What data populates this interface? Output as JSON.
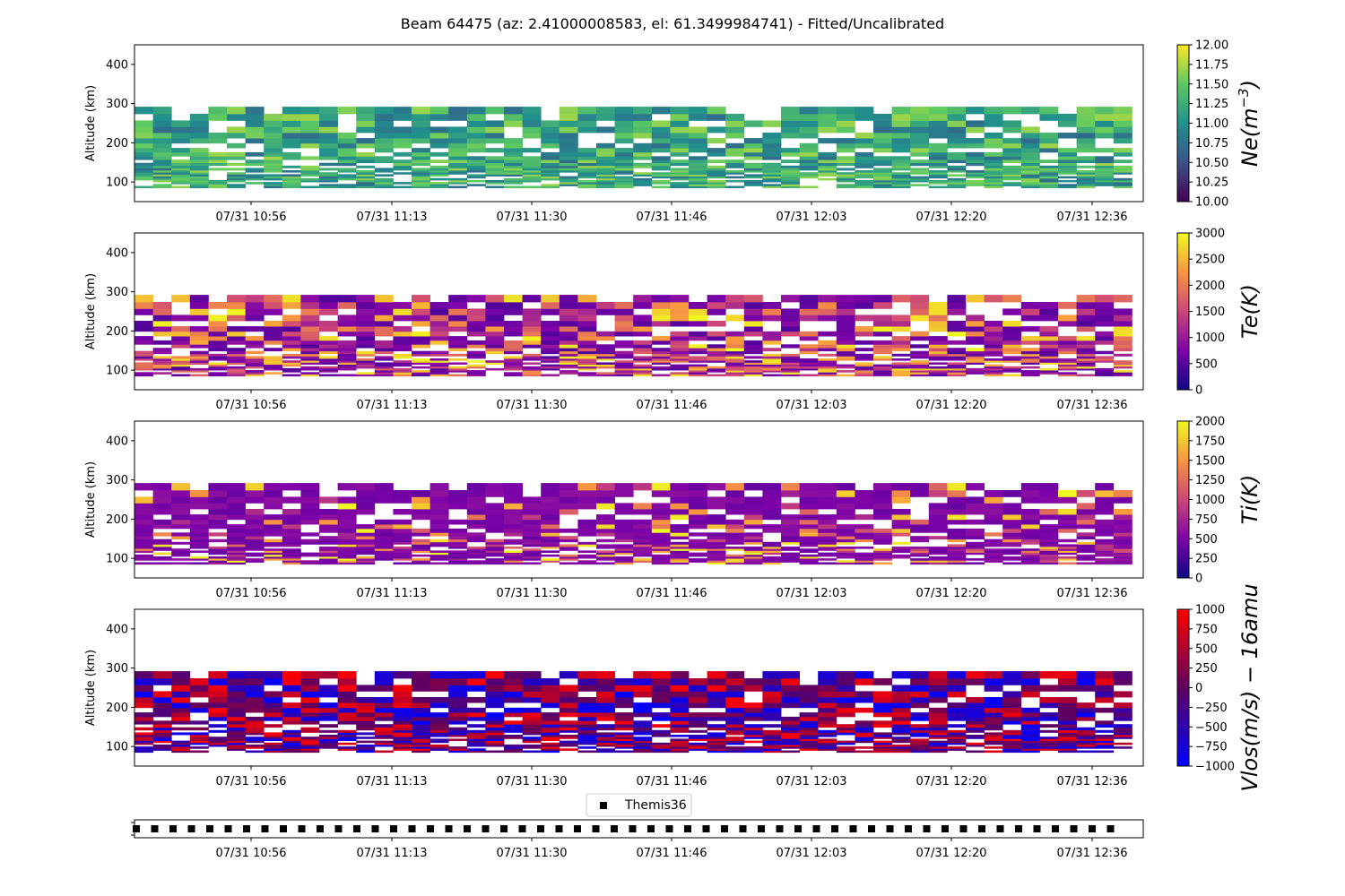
{
  "figure": {
    "title": "Beam 64475 (az: 2.41000008583, el: 61.3499984741) - Fitted/Uncalibrated"
  },
  "time_ticks": [
    "07/31 10:56",
    "07/31 11:13",
    "07/31 11:30",
    "07/31 11:46",
    "07/31 12:03",
    "07/31 12:20",
    "07/31 12:36"
  ],
  "chart_data": [
    {
      "type": "heatmap",
      "parameter": "Ne",
      "ylabel": "Altitude (km)",
      "ylim": [
        50,
        450
      ],
      "yticks": [
        100,
        200,
        300,
        400
      ],
      "x_ticks": [
        "07/31 10:56",
        "07/31 11:13",
        "07/31 11:30",
        "07/31 11:46",
        "07/31 12:03",
        "07/31 12:20",
        "07/31 12:36"
      ],
      "value_range_altitude_km": [
        85,
        295
      ],
      "colorbar": {
        "label": "Ne(m^-3)",
        "label_main": "Ne(m",
        "label_exp": "−3",
        "label_close": ")",
        "colormap": "viridis",
        "range": [
          10.0,
          12.0
        ],
        "ticks": [
          "10.00",
          "10.25",
          "10.50",
          "10.75",
          "11.00",
          "11.25",
          "11.50",
          "11.75",
          "12.00"
        ]
      }
    },
    {
      "type": "heatmap",
      "parameter": "Te",
      "ylabel": "Altitude (km)",
      "ylim": [
        50,
        450
      ],
      "yticks": [
        100,
        200,
        300,
        400
      ],
      "x_ticks": [
        "07/31 10:56",
        "07/31 11:13",
        "07/31 11:30",
        "07/31 11:46",
        "07/31 12:03",
        "07/31 12:20",
        "07/31 12:36"
      ],
      "value_range_altitude_km": [
        85,
        295
      ],
      "colorbar": {
        "label": "Te(K)",
        "colormap": "plasma",
        "range": [
          0,
          3000
        ],
        "ticks": [
          "0",
          "500",
          "1000",
          "1500",
          "2000",
          "2500",
          "3000"
        ]
      }
    },
    {
      "type": "heatmap",
      "parameter": "Ti",
      "ylabel": "Altitude (km)",
      "ylim": [
        50,
        450
      ],
      "yticks": [
        100,
        200,
        300,
        400
      ],
      "x_ticks": [
        "07/31 10:56",
        "07/31 11:13",
        "07/31 11:30",
        "07/31 11:46",
        "07/31 12:03",
        "07/31 12:20",
        "07/31 12:36"
      ],
      "value_range_altitude_km": [
        85,
        295
      ],
      "colorbar": {
        "label": "Ti(K)",
        "colormap": "plasma",
        "range": [
          0,
          2000
        ],
        "ticks": [
          "0",
          "250",
          "500",
          "750",
          "1000",
          "1250",
          "1500",
          "1750",
          "2000"
        ]
      }
    },
    {
      "type": "heatmap",
      "parameter": "Vlos",
      "ylabel": "Altitude (km)",
      "ylim": [
        50,
        450
      ],
      "yticks": [
        100,
        200,
        300,
        400
      ],
      "x_ticks": [
        "07/31 10:56",
        "07/31 11:13",
        "07/31 11:30",
        "07/31 11:46",
        "07/31 12:03",
        "07/31 12:20",
        "07/31 12:36"
      ],
      "value_range_altitude_km": [
        85,
        295
      ],
      "colorbar": {
        "label": "Vlos(m/s) − 16amu",
        "colormap": "blue-red",
        "range": [
          -1000,
          1000
        ],
        "ticks": [
          "−1000",
          "−750",
          "−500",
          "−250",
          "0",
          "250",
          "500",
          "750",
          "1000"
        ]
      }
    },
    {
      "type": "scatter",
      "legend": {
        "entries": [
          "Themis36"
        ],
        "placement": "top-center"
      },
      "marker": "square",
      "marker_count": 54,
      "x_ticks": [
        "07/31 10:56",
        "07/31 11:13",
        "07/31 11:30",
        "07/31 11:46",
        "07/31 12:03",
        "07/31 12:20",
        "07/31 12:36"
      ]
    }
  ]
}
